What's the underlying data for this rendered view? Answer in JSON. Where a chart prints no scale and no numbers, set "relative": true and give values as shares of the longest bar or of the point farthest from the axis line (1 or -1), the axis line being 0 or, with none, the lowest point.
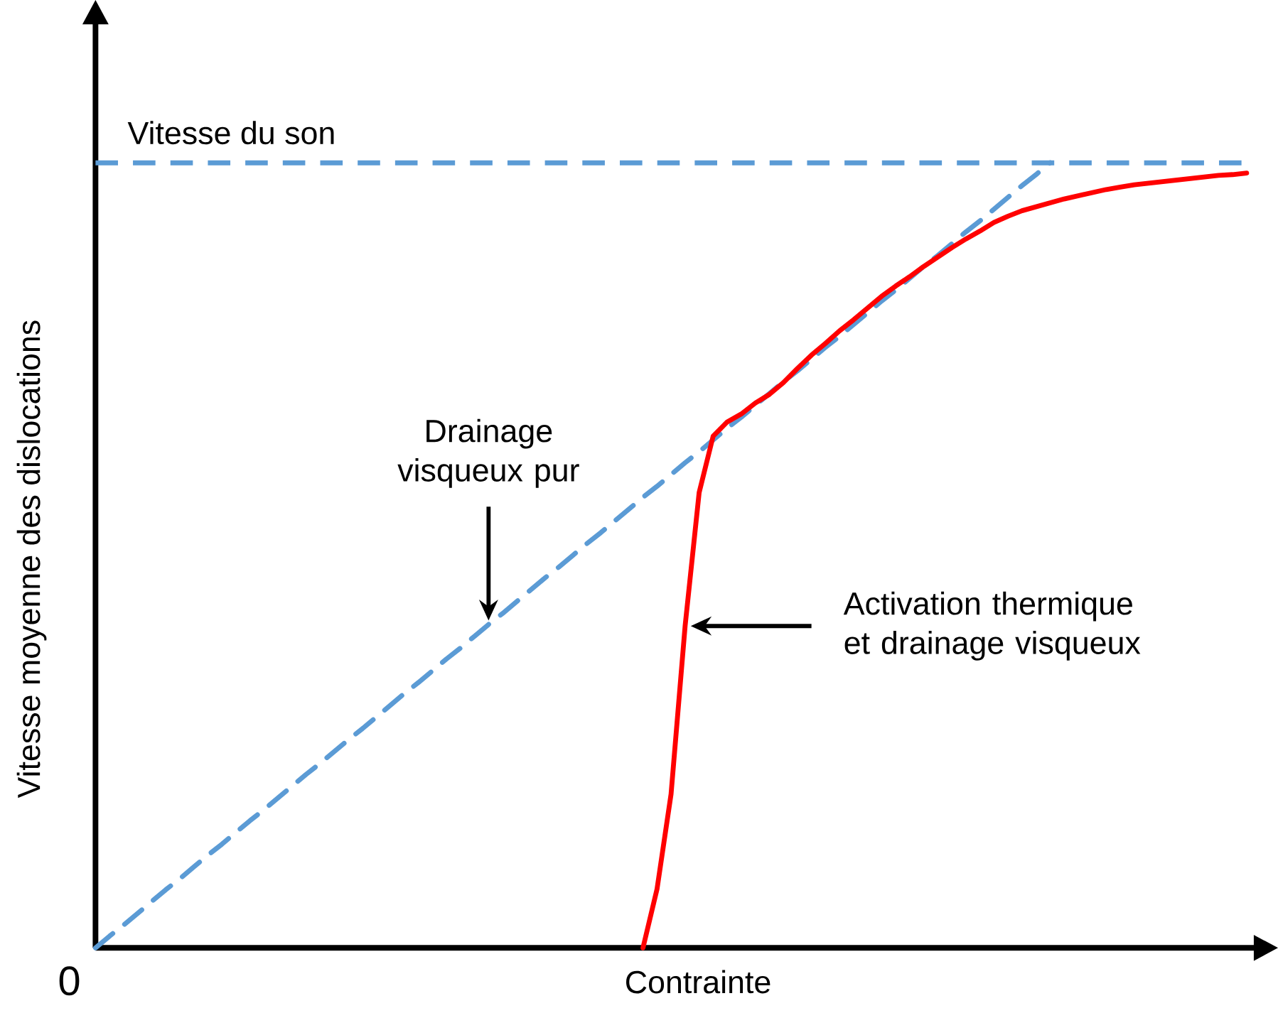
{
  "chart_data": {
    "type": "line",
    "relative": true,
    "xlabel": "Contrainte",
    "ylabel": "Vitesse moyenne des dislocations",
    "marker": "none",
    "categories": [
      null,
      null,
      null,
      null,
      null,
      null,
      null,
      null,
      null,
      null,
      null,
      null,
      null,
      null,
      null,
      null,
      null,
      null,
      null,
      null,
      null,
      null,
      null,
      null,
      null,
      null,
      null,
      null,
      null,
      null,
      null,
      null,
      null,
      null,
      null,
      null,
      null,
      null,
      null,
      null,
      null,
      null,
      null,
      null,
      null,
      null,
      null,
      null,
      null,
      null,
      null,
      null,
      null,
      null,
      null,
      null,
      null,
      null,
      null,
      null,
      null,
      null,
      null,
      null,
      null,
      null,
      null,
      null,
      null,
      null,
      null,
      null,
      null,
      null,
      null,
      null,
      null,
      null,
      null,
      null,
      null,
      null,
      null
    ],
    "ref_lines": [
      {
        "axis": "y",
        "value": 1,
        "label": "Vitesse du son",
        "color": "#5b9bd5",
        "line_style": "dashed"
      }
    ],
    "series": [
      {
        "color": "#5b9bd5",
        "line_style": "dashed",
        "values": [
          0,
          0.015,
          0.029,
          0.044,
          0.059,
          0.074,
          0.088,
          0.103,
          0.118,
          0.132,
          0.147,
          0.162,
          0.176,
          0.191,
          0.206,
          0.221,
          0.235,
          0.25,
          0.265,
          0.279,
          0.294,
          0.309,
          0.324,
          0.338,
          0.353,
          0.368,
          0.382,
          0.397,
          0.412,
          0.426,
          0.441,
          0.456,
          0.471,
          0.485,
          0.5,
          0.515,
          0.529,
          0.544,
          0.559,
          0.574,
          0.588,
          0.603,
          0.618,
          0.632,
          0.647,
          0.662,
          0.676,
          0.691,
          0.706,
          0.721,
          0.735,
          0.75,
          0.765,
          0.779,
          0.794,
          0.809,
          0.824,
          0.838,
          0.853,
          0.868,
          0.882,
          0.897,
          0.912,
          0.926,
          0.941,
          0.956,
          0.971,
          0.985,
          1,
          null,
          null,
          null,
          null,
          null,
          null,
          null,
          null,
          null,
          null,
          null,
          null,
          null,
          null
        ]
      },
      {
        "color": "#ff0000",
        "line_style": "solid",
        "values": [
          null,
          null,
          null,
          null,
          null,
          null,
          null,
          null,
          null,
          null,
          null,
          null,
          null,
          null,
          null,
          null,
          null,
          null,
          null,
          null,
          null,
          null,
          null,
          null,
          null,
          null,
          null,
          null,
          null,
          null,
          null,
          null,
          null,
          null,
          null,
          null,
          null,
          null,
          null,
          0,
          0.075,
          0.196,
          0.41,
          0.58,
          0.652,
          0.67,
          0.68,
          0.694,
          0.705,
          0.72,
          0.738,
          0.755,
          0.77,
          0.786,
          0.8,
          0.815,
          0.83,
          0.843,
          0.855,
          0.868,
          0.88,
          0.892,
          0.903,
          0.913,
          0.924,
          0.932,
          0.939,
          0.944,
          0.949,
          0.954,
          0.958,
          0.962,
          0.966,
          0.969,
          0.972,
          0.974,
          0.976,
          0.978,
          0.98,
          0.982,
          0.984,
          0.985,
          0.987
        ]
      }
    ],
    "annotations": [
      "Drainage visqueux pur",
      "Activation thermique et drainage visqueux",
      "0"
    ]
  }
}
